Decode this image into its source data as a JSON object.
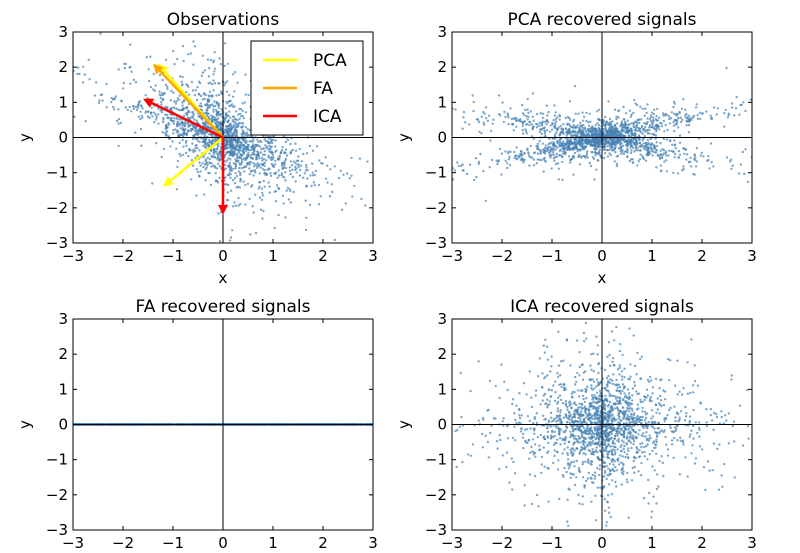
{
  "figure": {
    "background": "#ffffff",
    "point_color": "#4682b4"
  },
  "chart_data": [
    {
      "type": "scatter",
      "title": "Observations",
      "xlabel": "x",
      "ylabel": "y",
      "xlim": [
        -3,
        3
      ],
      "ylim": [
        -3,
        3
      ],
      "xticks": [
        -3,
        -2,
        -1,
        0,
        1,
        2,
        3
      ],
      "yticks": [
        -3,
        -2,
        -1,
        0,
        1,
        2,
        3
      ],
      "show_xticklabels": true,
      "grid": false,
      "zero_lines": true,
      "cloud": "two-crossed-elongated-clusters",
      "n_points": 1800,
      "legend": {
        "placement": "top-right",
        "entries": [
          {
            "label": "PCA",
            "color": "#ffff00"
          },
          {
            "label": "FA",
            "color": "#ffa500"
          },
          {
            "label": "ICA",
            "color": "#ff0000"
          }
        ]
      },
      "vectors": [
        {
          "method": "PCA",
          "color": "#ffff00",
          "dx": -1.3,
          "dy": 2.1
        },
        {
          "method": "PCA",
          "color": "#ffff00",
          "dx": -1.2,
          "dy": -1.4
        },
        {
          "method": "FA",
          "color": "#ffa500",
          "dx": -1.4,
          "dy": 2.1
        },
        {
          "method": "ICA",
          "color": "#ff0000",
          "dx": -1.6,
          "dy": 1.1
        },
        {
          "method": "ICA",
          "color": "#ff0000",
          "dx": 0.0,
          "dy": -2.2
        }
      ]
    },
    {
      "type": "scatter",
      "title": "PCA recovered signals",
      "xlabel": "x",
      "ylabel": "y",
      "xlim": [
        -3,
        3
      ],
      "ylim": [
        -3,
        3
      ],
      "xticks": [
        -3,
        -2,
        -1,
        0,
        1,
        2,
        3
      ],
      "yticks": [
        -3,
        -2,
        -1,
        0,
        1,
        2,
        3
      ],
      "show_xticklabels": true,
      "grid": false,
      "zero_lines": true,
      "cloud": "horizontal-band-with-diagonal-arms",
      "n_points": 1800
    },
    {
      "type": "scatter",
      "title": "FA recovered signals",
      "xlabel": "",
      "ylabel": "y",
      "xlim": [
        -3,
        3
      ],
      "ylim": [
        -3,
        3
      ],
      "xticks": [
        -3,
        -2,
        -1,
        0,
        1,
        2,
        3
      ],
      "yticks": [
        -3,
        -2,
        -1,
        0,
        1,
        2,
        3
      ],
      "show_xticklabels": true,
      "grid": false,
      "zero_lines": true,
      "cloud": "flat-line-at-y-0",
      "n_points": 1800
    },
    {
      "type": "scatter",
      "title": "ICA recovered signals",
      "xlabel": "",
      "ylabel": "y",
      "xlim": [
        -3,
        3
      ],
      "ylim": [
        -3,
        3
      ],
      "xticks": [
        -3,
        -2,
        -1,
        0,
        1,
        2,
        3
      ],
      "yticks": [
        -3,
        -2,
        -1,
        0,
        1,
        2,
        3
      ],
      "show_xticklabels": true,
      "grid": false,
      "zero_lines": true,
      "cloud": "axis-aligned-cross",
      "n_points": 1800
    }
  ]
}
